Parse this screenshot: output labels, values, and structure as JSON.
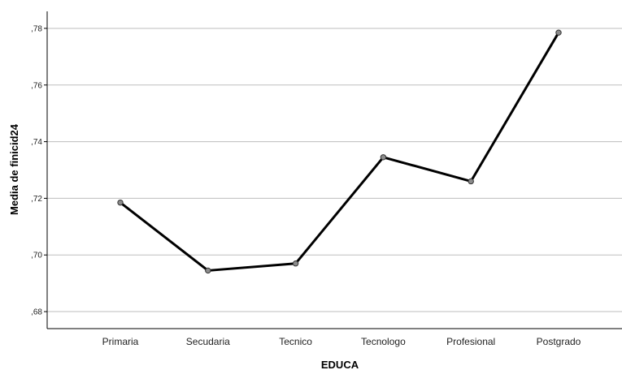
{
  "chart_data": {
    "type": "line",
    "xlabel": "EDUCA",
    "ylabel": "Media de finicid24",
    "categories": [
      "Primaria",
      "Secudaria",
      "Tecnico",
      "Tecnologo",
      "Profesional",
      "Postgrado"
    ],
    "values": [
      0.7185,
      0.6945,
      0.697,
      0.7345,
      0.726,
      0.7785
    ],
    "ylim": [
      0.674,
      0.786
    ],
    "yticks": [
      {
        "value": 0.68,
        "label": ",68"
      },
      {
        "value": 0.7,
        "label": ",70"
      },
      {
        "value": 0.72,
        "label": ",72"
      },
      {
        "value": 0.74,
        "label": ",74"
      },
      {
        "value": 0.76,
        "label": ",76"
      },
      {
        "value": 0.78,
        "label": ",78"
      }
    ],
    "grid": true,
    "colors": {
      "line": "#000000",
      "marker": "#8c8c8c",
      "grid": "#bdbdbd",
      "axis": "#000000"
    }
  }
}
